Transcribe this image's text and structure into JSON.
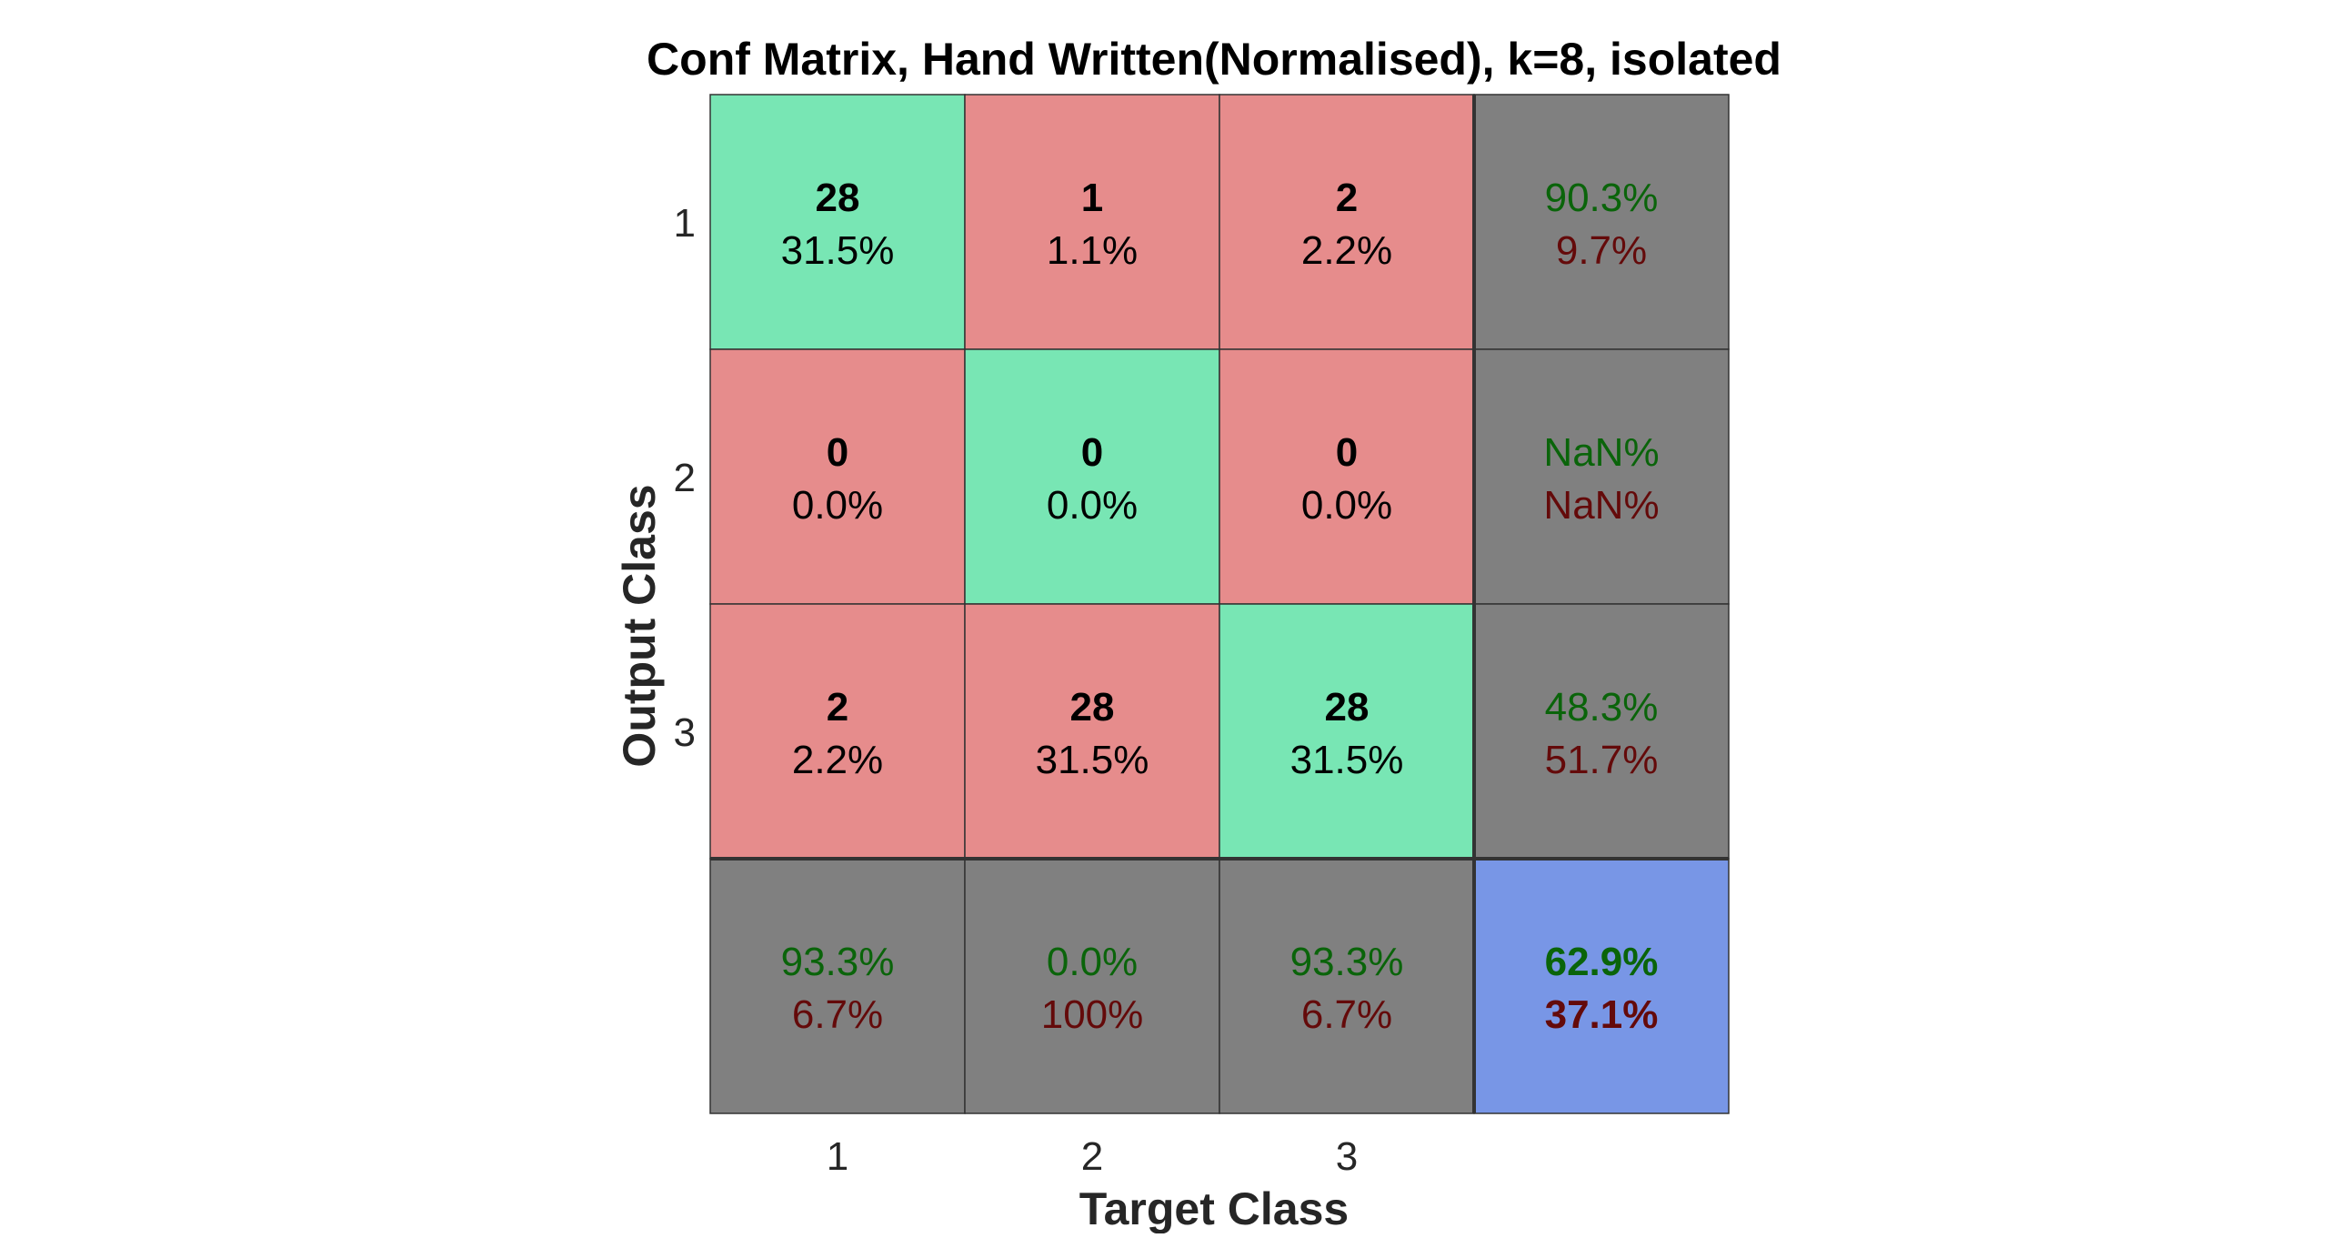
{
  "chart_data": {
    "type": "heatmap",
    "title": "Conf Matrix, Hand Written(Normalised), k=8, isolated",
    "xlabel": "Target Class",
    "ylabel": "Output Class",
    "target_classes": [
      "1",
      "2",
      "3"
    ],
    "output_classes": [
      "1",
      "2",
      "3"
    ],
    "cells": [
      [
        {
          "count": "28",
          "percent": "31.5%"
        },
        {
          "count": "1",
          "percent": "1.1%"
        },
        {
          "count": "2",
          "percent": "2.2%"
        }
      ],
      [
        {
          "count": "0",
          "percent": "0.0%"
        },
        {
          "count": "0",
          "percent": "0.0%"
        },
        {
          "count": "0",
          "percent": "0.0%"
        }
      ],
      [
        {
          "count": "2",
          "percent": "2.2%"
        },
        {
          "count": "28",
          "percent": "31.5%"
        },
        {
          "count": "28",
          "percent": "31.5%"
        }
      ]
    ],
    "row_summary": [
      {
        "correct": "90.3%",
        "incorrect": "9.7%"
      },
      {
        "correct": "NaN%",
        "incorrect": "NaN%"
      },
      {
        "correct": "48.3%",
        "incorrect": "51.7%"
      }
    ],
    "column_summary": [
      {
        "correct": "93.3%",
        "incorrect": "6.7%"
      },
      {
        "correct": "0.0%",
        "incorrect": "100%"
      },
      {
        "correct": "93.3%",
        "incorrect": "6.7%"
      }
    ],
    "overall": {
      "correct": "62.9%",
      "incorrect": "37.1%"
    },
    "colors": {
      "diagonal": "#78e6b4",
      "off_diagonal": "#e68c8c",
      "summary": "#808080",
      "overall": "#7896e6",
      "correct_text": "#0a640a",
      "incorrect_text": "#640a0a"
    }
  }
}
